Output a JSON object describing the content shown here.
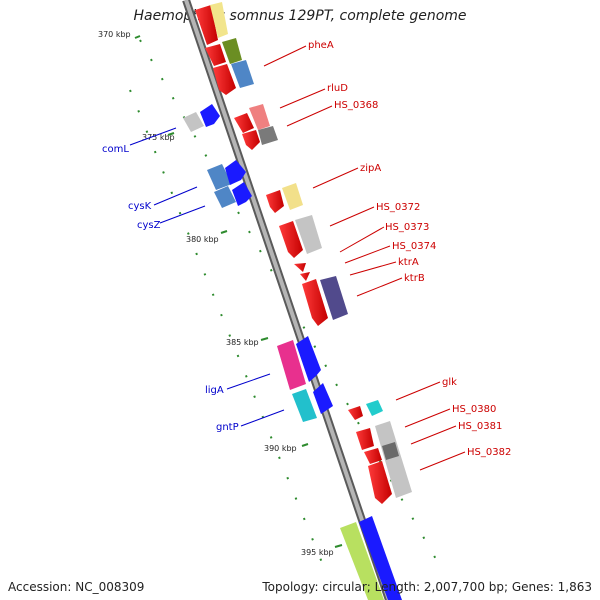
{
  "title": "Haemophilus somnus 129PT, complete genome",
  "footer": {
    "accession": "Accession: NC_008309",
    "summary": "Topology: circular; Length: 2,007,700 bp; Genes: 1,863"
  },
  "colors": {
    "backbone": "#8c8c8c",
    "right_label": "#cc0000",
    "left_label": "#0000cc",
    "tick": "#2e8b2e"
  },
  "ticks": [
    "370 kbp",
    "375 kbp",
    "380 kbp",
    "385 kbp",
    "390 kbp",
    "395 kbp"
  ],
  "right_labels": [
    "pheA",
    "rluD",
    "HS_0368",
    "zipA",
    "HS_0372",
    "HS_0373",
    "HS_0374",
    "ktrA",
    "ktrB",
    "glk",
    "HS_0380",
    "HS_0381",
    "HS_0382"
  ],
  "left_labels": [
    "comL",
    "cysK",
    "cysZ",
    "ligA",
    "gntP"
  ]
}
